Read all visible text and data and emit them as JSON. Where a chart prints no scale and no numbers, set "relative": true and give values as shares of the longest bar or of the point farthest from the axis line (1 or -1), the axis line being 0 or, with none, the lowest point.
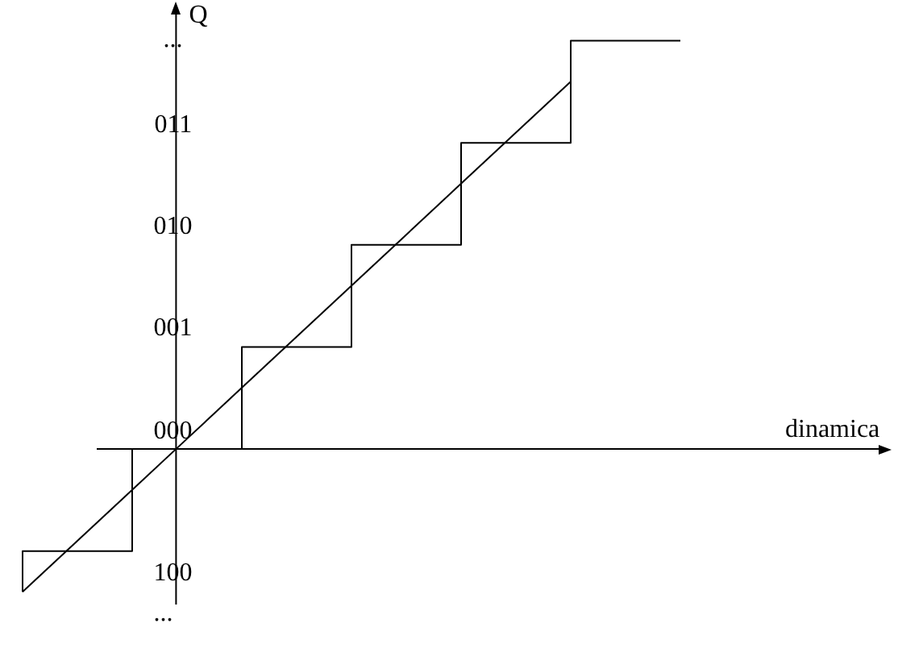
{
  "chart_data": {
    "type": "step",
    "relative": true,
    "xlabel": "dinamica",
    "ylabel": "Q",
    "categories": [
      null,
      null,
      null,
      null,
      null,
      null,
      null,
      null,
      null,
      null,
      null,
      null,
      null
    ],
    "legend": false,
    "marker": "none",
    "line_style": "solid",
    "annotations": [
      "...",
      "011",
      "010",
      "001",
      "000",
      "100",
      "..."
    ],
    "series": [
      {
        "type": "step",
        "color": "#000000",
        "values": [
          -0.35,
          -0.25,
          -0.25,
          0,
          0,
          0.25,
          0.25,
          0.5,
          0.5,
          0.75,
          0.75,
          1,
          1
        ]
      },
      {
        "type": "line",
        "color": "#000000",
        "values": [
          -0.35,
          -0.225,
          -0.1,
          0.025,
          0.15,
          0.275,
          0.4,
          0.525,
          0.65,
          0.775,
          0.9,
          null,
          null
        ]
      }
    ]
  }
}
